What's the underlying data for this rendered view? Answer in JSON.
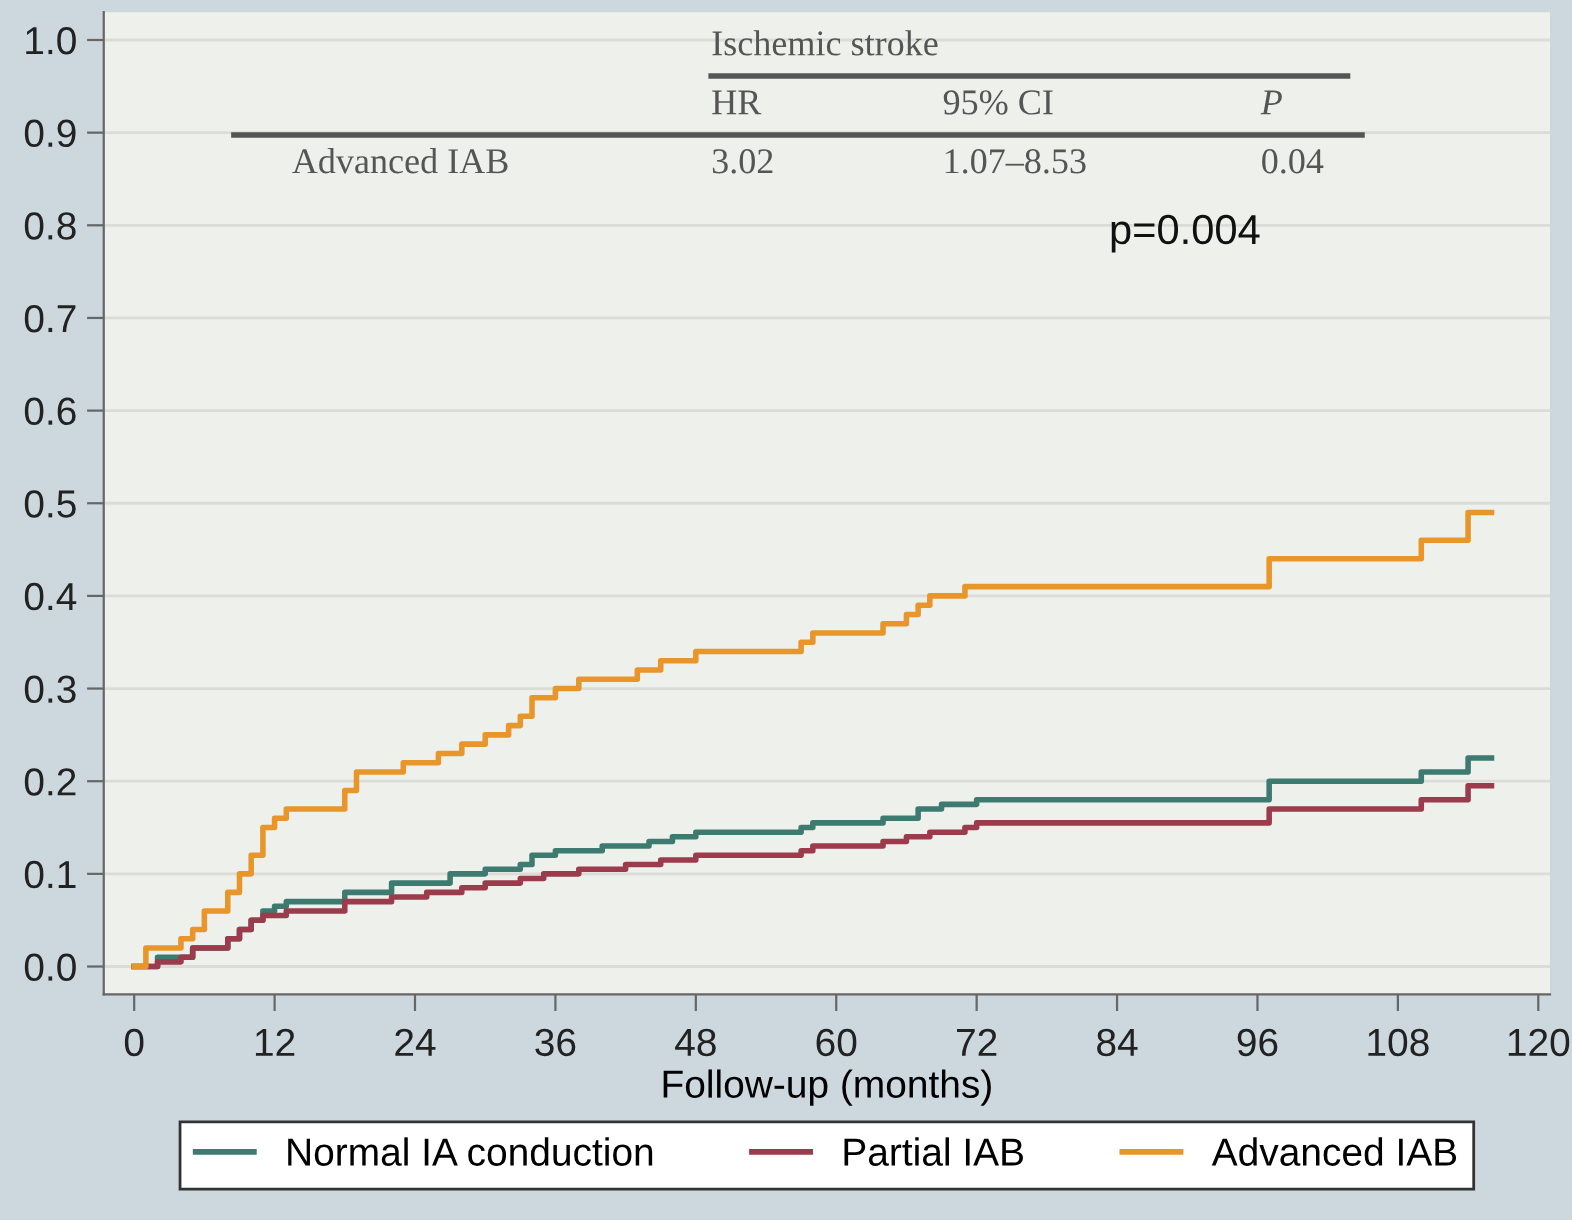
{
  "chart_data": {
    "type": "step",
    "xlabel": "Follow-up (months)",
    "xlim": [
      -2.6,
      121
    ],
    "xticks": [
      0,
      12,
      24,
      36,
      48,
      60,
      72,
      84,
      96,
      108,
      120
    ],
    "ylim": [
      -0.03,
      1.03
    ],
    "yticks": [
      {
        "value": 0,
        "label": "0.0"
      },
      0.1,
      0.2,
      0.3,
      0.4,
      0.5,
      0.6,
      0.7,
      0.8,
      0.9,
      {
        "value": 1,
        "label": "1.0"
      }
    ],
    "grid": "y",
    "legend": "bottom",
    "line_style": "solid",
    "marker": "none",
    "annotations": [
      "Ischemic stroke",
      "HR",
      "95% CI",
      "P",
      "Advanced IAB",
      "3.02",
      "1.07–8.53",
      "0.04",
      "p=0.004"
    ],
    "series": [
      {
        "name": "Normal IA conduction",
        "color": "#3d7a70",
        "x": [
          0,
          2,
          4,
          5,
          7,
          8,
          9,
          10,
          11,
          12,
          13,
          17,
          18,
          21,
          22,
          26,
          27,
          30,
          33,
          34,
          36,
          40,
          44,
          46,
          48,
          56,
          57,
          58,
          64,
          67,
          69,
          72,
          96,
          97,
          109,
          110,
          113,
          114,
          116
        ],
        "values": [
          0,
          0.01,
          0.01,
          0.02,
          0.02,
          0.03,
          0.04,
          0.05,
          0.06,
          0.065,
          0.07,
          0.07,
          0.08,
          0.08,
          0.09,
          0.09,
          0.1,
          0.105,
          0.11,
          0.12,
          0.125,
          0.13,
          0.135,
          0.14,
          0.145,
          0.145,
          0.15,
          0.155,
          0.16,
          0.17,
          0.175,
          0.18,
          0.18,
          0.2,
          0.2,
          0.21,
          0.21,
          0.225,
          0.225
        ]
      },
      {
        "name": "Partial IAB",
        "color": "#9b3b4b",
        "x": [
          0,
          2,
          4,
          5,
          8,
          9,
          10,
          11,
          13,
          17,
          18,
          22,
          25,
          28,
          30,
          33,
          35,
          38,
          42,
          45,
          48,
          56,
          57,
          58,
          64,
          66,
          68,
          71,
          72,
          96,
          97,
          109,
          110,
          113,
          114,
          116
        ],
        "values": [
          0,
          0.005,
          0.01,
          0.02,
          0.03,
          0.04,
          0.05,
          0.055,
          0.06,
          0.06,
          0.07,
          0.075,
          0.08,
          0.085,
          0.09,
          0.095,
          0.1,
          0.105,
          0.11,
          0.115,
          0.12,
          0.12,
          0.125,
          0.13,
          0.135,
          0.14,
          0.145,
          0.15,
          0.155,
          0.155,
          0.17,
          0.17,
          0.18,
          0.18,
          0.195,
          0.195
        ]
      },
      {
        "name": "Advanced IAB",
        "color": "#e8952a",
        "x": [
          0,
          1,
          3,
          4,
          5,
          6,
          7,
          8,
          9,
          10,
          11,
          12,
          13,
          17,
          18,
          19,
          22,
          23,
          25,
          26,
          28,
          30,
          32,
          33,
          34,
          36,
          38,
          42,
          43,
          45,
          48,
          56,
          57,
          58,
          62,
          64,
          66,
          67,
          68,
          71,
          96,
          97,
          109,
          110,
          113,
          114,
          116
        ],
        "values": [
          0,
          0.02,
          0.02,
          0.03,
          0.04,
          0.06,
          0.06,
          0.08,
          0.1,
          0.12,
          0.15,
          0.16,
          0.17,
          0.17,
          0.19,
          0.21,
          0.21,
          0.22,
          0.22,
          0.23,
          0.24,
          0.25,
          0.26,
          0.27,
          0.29,
          0.3,
          0.31,
          0.31,
          0.32,
          0.33,
          0.34,
          0.34,
          0.35,
          0.36,
          0.36,
          0.37,
          0.38,
          0.39,
          0.4,
          0.41,
          0.41,
          0.44,
          0.44,
          0.46,
          0.46,
          0.49,
          0.49
        ]
      }
    ]
  }
}
